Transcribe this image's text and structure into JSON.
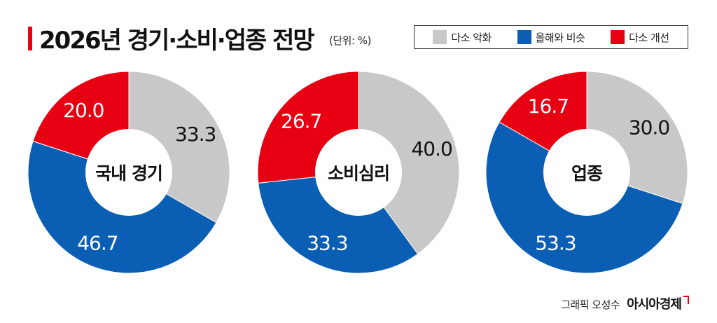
{
  "title": "2026년 경기·소비·업종 전망",
  "unit_note": "(단위: %)",
  "legend": [
    {
      "label": "다소 악화",
      "color": "#c8c8c8"
    },
    {
      "label": "올해와 비슷",
      "color": "#0a5fb4"
    },
    {
      "label": "다소 개선",
      "color": "#e60012"
    }
  ],
  "credit": {
    "text": "그래픽 오성수",
    "brand": "아시아경제"
  },
  "chart_data": [
    {
      "type": "pie",
      "center_label": "국내 경기",
      "categories": [
        "다소 악화",
        "올해와 비슷",
        "다소 개선"
      ],
      "values": [
        33.3,
        46.7,
        20.0
      ],
      "value_labels": [
        "33.3",
        "46.7",
        "20.0"
      ],
      "colors": [
        "#c8c8c8",
        "#0a5fb4",
        "#e60012"
      ]
    },
    {
      "type": "pie",
      "center_label": "소비심리",
      "categories": [
        "다소 악화",
        "올해와 비슷",
        "다소 개선"
      ],
      "values": [
        40.0,
        33.3,
        26.7
      ],
      "value_labels": [
        "40.0",
        "33.3",
        "26.7"
      ],
      "colors": [
        "#c8c8c8",
        "#0a5fb4",
        "#e60012"
      ]
    },
    {
      "type": "pie",
      "center_label": "업종",
      "categories": [
        "다소 악화",
        "올해와 비슷",
        "다소 개선"
      ],
      "values": [
        30.0,
        53.3,
        16.7
      ],
      "value_labels": [
        "30.0",
        "53.3",
        "16.7"
      ],
      "colors": [
        "#c8c8c8",
        "#0a5fb4",
        "#e60012"
      ]
    }
  ]
}
